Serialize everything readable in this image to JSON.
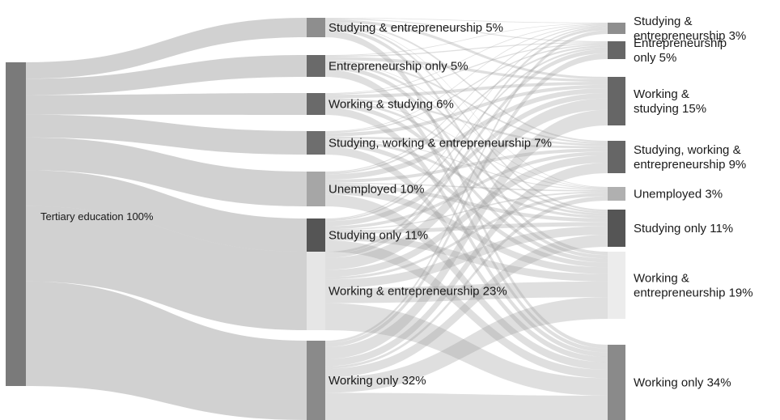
{
  "chart_data": {
    "type": "sankey",
    "title": "",
    "source": {
      "label": "Tertiary education 100%",
      "value": 100,
      "color": "#7a7a7a"
    },
    "middle": [
      {
        "label": "Studying & entrepreneurship 5%",
        "value": 5,
        "color": "#8e8e8e"
      },
      {
        "label": "Entrepreneurship only 5%",
        "value": 5,
        "color": "#6a6a6a"
      },
      {
        "label": "Working & studying 6%",
        "value": 6,
        "color": "#6a6a6a"
      },
      {
        "label": "Studying, working & entrepreneurship 7%",
        "value": 7,
        "color": "#6e6e6e"
      },
      {
        "label": "Unemployed 10%",
        "value": 10,
        "color": "#a6a6a6"
      },
      {
        "label": "Studying only 11%",
        "value": 11,
        "color": "#555555"
      },
      {
        "label": "Working & entrepreneurship 23%",
        "value": 23,
        "color": "#e6e6e6"
      },
      {
        "label": "Working only 32%",
        "value": 32,
        "color": "#8a8a8a"
      }
    ],
    "destination": [
      {
        "label_lines": [
          "Studying &",
          "entrepreneurship 3%"
        ],
        "value": 3,
        "color": "#8e8e8e"
      },
      {
        "label_lines": [
          "Entrepreneurship",
          "only 5%"
        ],
        "value": 5,
        "color": "#666666"
      },
      {
        "label_lines": [
          "Working &",
          "studying 15%"
        ],
        "value": 15,
        "color": "#666666"
      },
      {
        "label_lines": [
          "Studying, working &",
          "entrepreneurship 9%"
        ],
        "value": 9,
        "color": "#666666"
      },
      {
        "label_lines": [
          "Unemployed 3%"
        ],
        "value": 3,
        "color": "#b0b0b0"
      },
      {
        "label_lines": [
          "Studying only 11%"
        ],
        "value": 11,
        "color": "#555555"
      },
      {
        "label_lines": [
          "Working &",
          "entrepreneurship 19%"
        ],
        "value": 19,
        "color": "#ececec"
      },
      {
        "label_lines": [
          "Working only 34%"
        ],
        "value": 34,
        "color": "#8a8a8a"
      }
    ],
    "colors": {
      "flow": "#9a9a9a",
      "background": "#ffffff"
    }
  }
}
